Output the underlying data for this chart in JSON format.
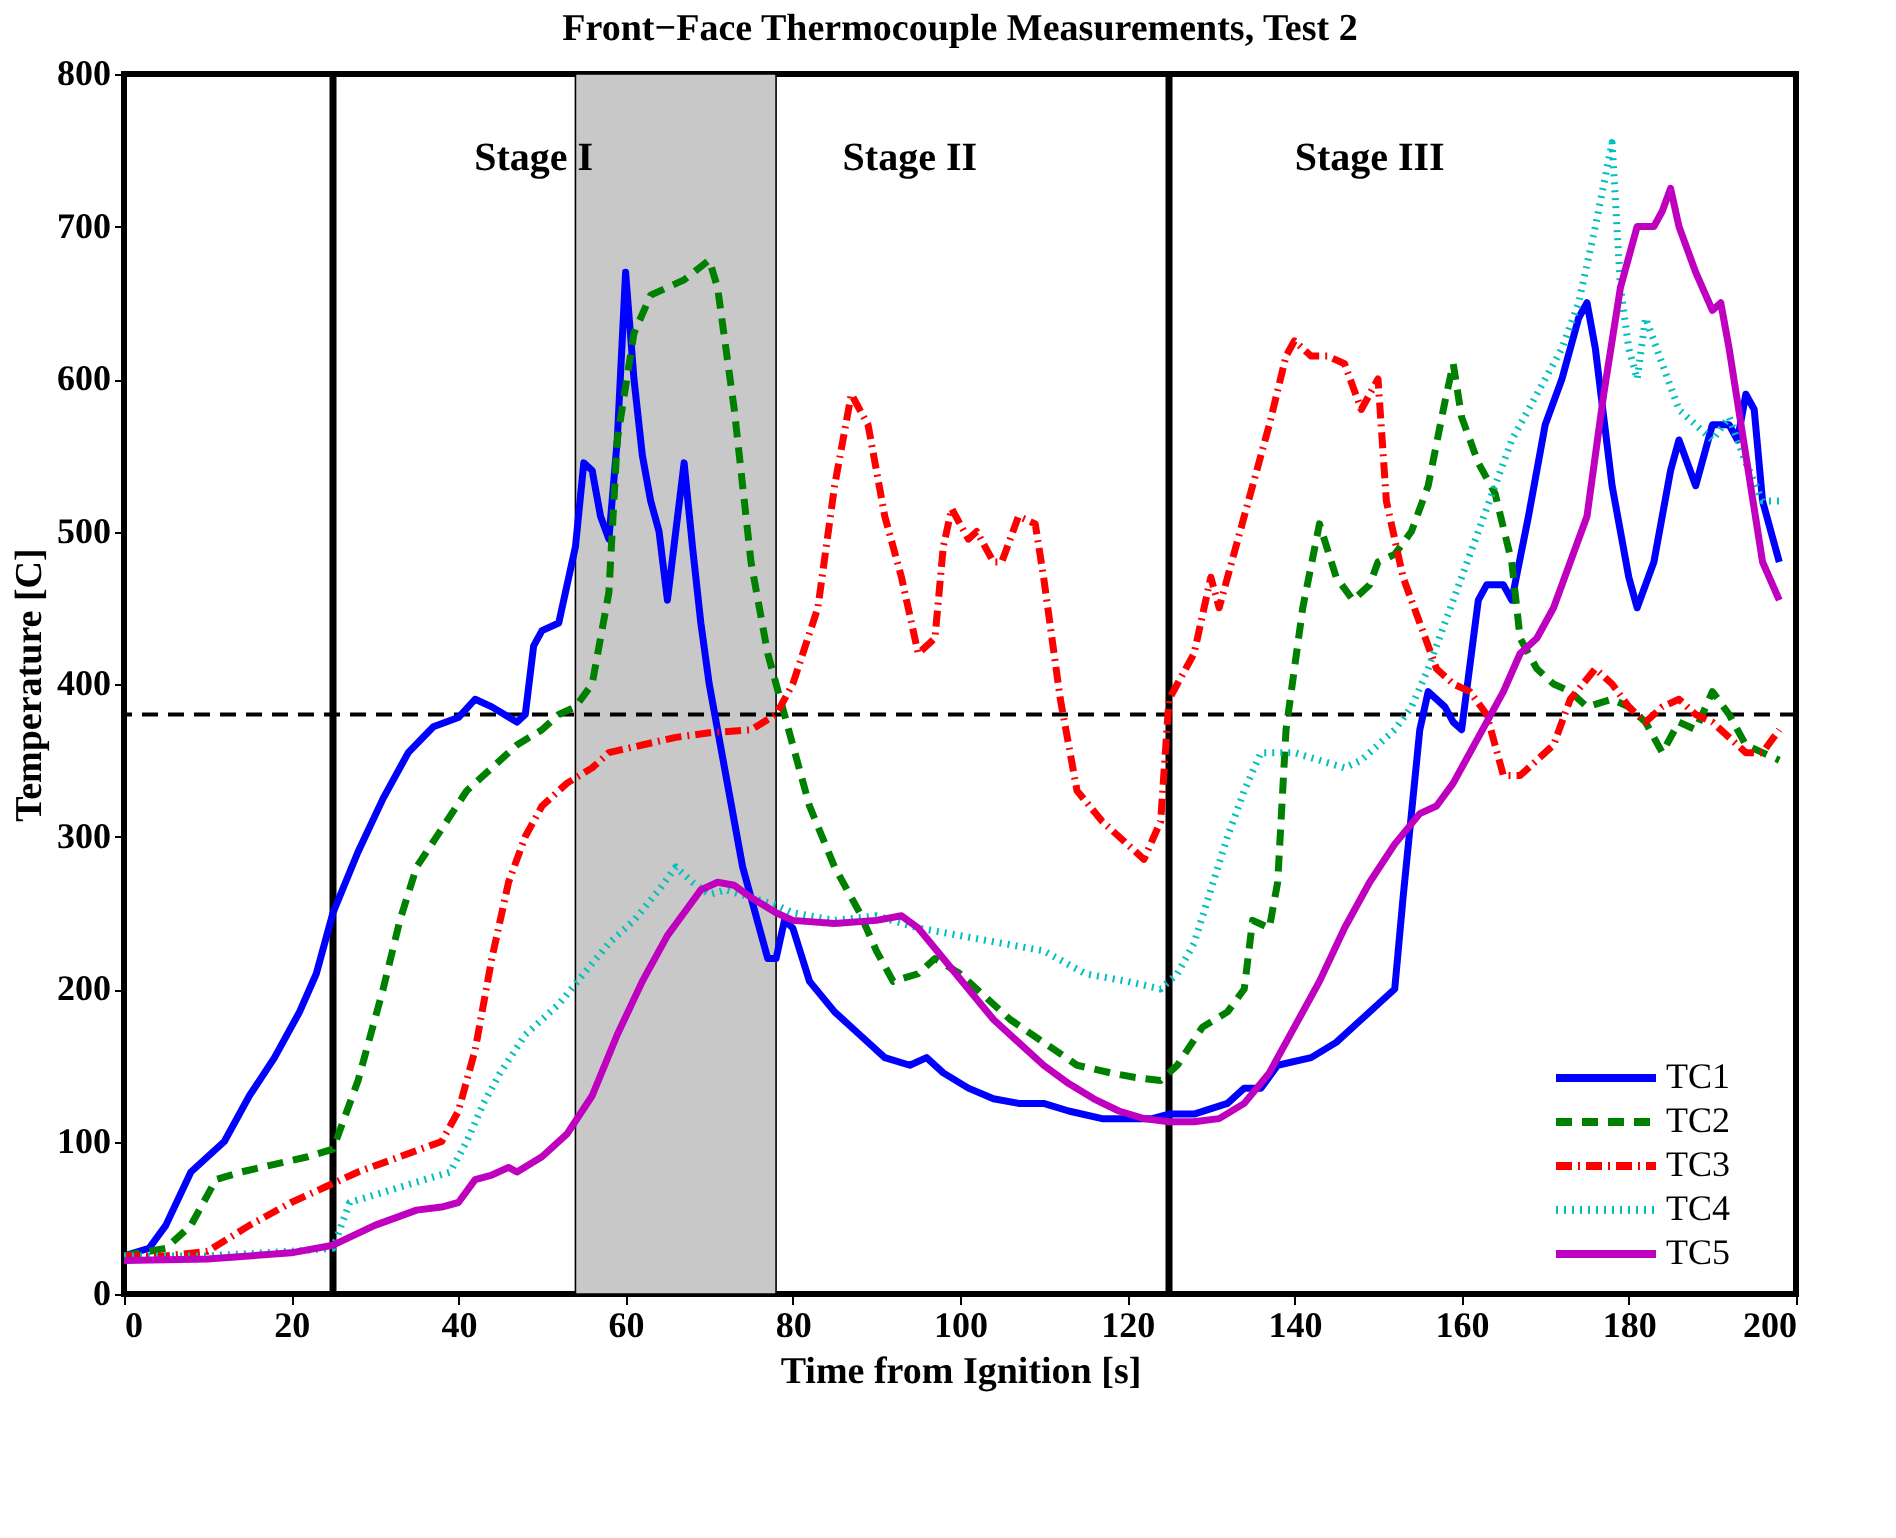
{
  "chart_data": {
    "type": "line",
    "title": "Front−Face Thermocouple Measurements, Test 2",
    "xlabel": "Time from Ignition [s]",
    "ylabel": "Temperature [C]",
    "xlim": [
      0,
      200
    ],
    "xticks": [
      0,
      20,
      40,
      60,
      80,
      100,
      120,
      140,
      160,
      180,
      200
    ],
    "ylim": [
      0,
      800
    ],
    "yticks": [
      0,
      100,
      200,
      300,
      400,
      500,
      600,
      700,
      800
    ],
    "grid": false,
    "legend": "bottom right",
    "marker": "none",
    "series": [
      {
        "name": "TC1",
        "color": "#0000ff",
        "line_style": "solid",
        "x": [
          0,
          3,
          5,
          8,
          10,
          12,
          15,
          18,
          21,
          23,
          25,
          28,
          31,
          34,
          37,
          40,
          42,
          44,
          47,
          48,
          49,
          50,
          52,
          54,
          55,
          56,
          57,
          58,
          59,
          60,
          61,
          62,
          63,
          64,
          65,
          66,
          67,
          68,
          69,
          70,
          72,
          74,
          76,
          77,
          78,
          79,
          80,
          82,
          85,
          88,
          91,
          94,
          96,
          98,
          101,
          104,
          107,
          110,
          113,
          117,
          120,
          123,
          125,
          128,
          132,
          134,
          136,
          138,
          142,
          145,
          148,
          150,
          152,
          153,
          155,
          156,
          158,
          159,
          160,
          162,
          163,
          165,
          166,
          168,
          170,
          172,
          174,
          175,
          176,
          178,
          180,
          181,
          183,
          185,
          186,
          188,
          190,
          192,
          193,
          194,
          195,
          196,
          197,
          198
        ],
        "values": [
          25,
          30,
          45,
          80,
          90,
          100,
          130,
          155,
          185,
          210,
          250,
          290,
          325,
          355,
          372,
          378,
          390,
          385,
          375,
          380,
          425,
          435,
          440,
          490,
          545,
          540,
          510,
          495,
          560,
          670,
          600,
          550,
          520,
          500,
          455,
          500,
          545,
          490,
          440,
          400,
          340,
          280,
          240,
          220,
          220,
          245,
          240,
          205,
          185,
          170,
          155,
          150,
          155,
          145,
          135,
          128,
          125,
          125,
          120,
          115,
          115,
          115,
          118,
          118,
          125,
          135,
          135,
          150,
          155,
          165,
          180,
          190,
          200,
          260,
          370,
          395,
          385,
          375,
          370,
          455,
          465,
          465,
          455,
          510,
          570,
          600,
          640,
          650,
          620,
          530,
          470,
          450,
          480,
          540,
          560,
          530,
          570,
          570,
          560,
          590,
          580,
          520,
          500,
          480
        ]
      },
      {
        "name": "TC2",
        "color": "#008000",
        "line_style": "dashed",
        "x": [
          0,
          5,
          8,
          11,
          14,
          18,
          22,
          25,
          28,
          31,
          33,
          35,
          38,
          41,
          44,
          47,
          50,
          52,
          54,
          56,
          58,
          59,
          61,
          63,
          65,
          67,
          70,
          71,
          73,
          75,
          77,
          78,
          80,
          82,
          85,
          88,
          90,
          92,
          95,
          97,
          100,
          103,
          106,
          110,
          114,
          118,
          121,
          124,
          126,
          129,
          132,
          134,
          135,
          137,
          138,
          139,
          141,
          143,
          145,
          147,
          149,
          150,
          152,
          154,
          156,
          158,
          159,
          160,
          162,
          164,
          166,
          167,
          169,
          171,
          173,
          175,
          178,
          180,
          182,
          184,
          186,
          188,
          190,
          192,
          194,
          196,
          198
        ],
        "values": [
          25,
          30,
          45,
          75,
          80,
          85,
          90,
          95,
          140,
          200,
          245,
          280,
          305,
          330,
          345,
          360,
          370,
          380,
          385,
          400,
          460,
          560,
          630,
          655,
          660,
          665,
          678,
          660,
          580,
          480,
          420,
          400,
          360,
          320,
          280,
          250,
          225,
          205,
          210,
          220,
          210,
          195,
          180,
          165,
          150,
          145,
          142,
          140,
          150,
          175,
          185,
          200,
          245,
          240,
          270,
          370,
          450,
          505,
          470,
          455,
          465,
          480,
          485,
          500,
          530,
          585,
          610,
          575,
          545,
          525,
          480,
          430,
          410,
          400,
          395,
          385,
          390,
          385,
          375,
          355,
          375,
          370,
          395,
          380,
          360,
          355,
          350
        ]
      },
      {
        "name": "TC3",
        "color": "#ff0000",
        "line_style": "dashdot",
        "x": [
          0,
          5,
          10,
          15,
          20,
          24,
          28,
          33,
          38,
          40,
          42,
          44,
          46,
          48,
          50,
          53,
          56,
          58,
          62,
          66,
          70,
          75,
          78,
          80,
          83,
          85,
          87,
          89,
          91,
          93,
          95,
          97,
          98,
          99,
          100,
          101,
          102,
          104,
          105,
          107,
          109,
          110,
          112,
          114,
          117,
          120,
          122,
          124,
          125,
          126,
          128,
          130,
          131,
          133,
          135,
          137,
          139,
          140,
          142,
          144,
          146,
          148,
          150,
          151,
          153,
          155,
          157,
          159,
          161,
          163,
          165,
          167,
          169,
          171,
          173,
          176,
          178,
          180,
          182,
          184,
          186,
          188,
          190,
          192,
          194,
          196,
          198
        ],
        "values": [
          25,
          25,
          28,
          45,
          60,
          70,
          80,
          90,
          100,
          120,
          160,
          220,
          270,
          300,
          320,
          335,
          345,
          355,
          360,
          365,
          368,
          370,
          380,
          400,
          450,
          530,
          590,
          570,
          510,
          470,
          420,
          430,
          490,
          515,
          505,
          495,
          500,
          480,
          480,
          510,
          505,
          470,
          390,
          330,
          310,
          295,
          285,
          310,
          390,
          400,
          420,
          470,
          450,
          490,
          530,
          570,
          615,
          625,
          615,
          615,
          610,
          580,
          600,
          520,
          470,
          440,
          410,
          400,
          395,
          380,
          340,
          340,
          350,
          360,
          390,
          410,
          400,
          385,
          375,
          385,
          390,
          380,
          375,
          365,
          355,
          355,
          370
        ]
      },
      {
        "name": "TC4",
        "color": "#00bfbf",
        "line_style": "dotted",
        "x": [
          0,
          10,
          20,
          25,
          27,
          30,
          33,
          36,
          39,
          41,
          43,
          45,
          48,
          52,
          55,
          58,
          61,
          64,
          66,
          68,
          70,
          72,
          75,
          78,
          80,
          85,
          90,
          95,
          100,
          105,
          110,
          115,
          120,
          124,
          126,
          128,
          130,
          132,
          134,
          136,
          140,
          143,
          146,
          148,
          150,
          152,
          154,
          156,
          158,
          160,
          162,
          164,
          166,
          168,
          170,
          172,
          174,
          176,
          178,
          179,
          180,
          181,
          182,
          184,
          186,
          188,
          190,
          192,
          194,
          196,
          198
        ],
        "values": [
          25,
          25,
          28,
          30,
          60,
          65,
          70,
          75,
          80,
          100,
          125,
          145,
          170,
          190,
          210,
          230,
          245,
          265,
          280,
          270,
          262,
          265,
          260,
          255,
          250,
          245,
          248,
          240,
          235,
          230,
          225,
          210,
          205,
          200,
          210,
          230,
          265,
          300,
          330,
          355,
          355,
          350,
          345,
          350,
          360,
          370,
          385,
          410,
          440,
          470,
          500,
          530,
          560,
          580,
          600,
          620,
          650,
          700,
          755,
          660,
          620,
          600,
          640,
          610,
          580,
          570,
          560,
          575,
          545,
          520,
          520
        ]
      },
      {
        "name": "TC5",
        "color": "#bf00bf",
        "line_style": "solid",
        "x": [
          0,
          10,
          20,
          25,
          30,
          35,
          38,
          40,
          42,
          44,
          46,
          47,
          50,
          53,
          56,
          59,
          62,
          65,
          67,
          69,
          71,
          73,
          75,
          78,
          80,
          85,
          90,
          93,
          95,
          98,
          101,
          104,
          107,
          110,
          113,
          116,
          119,
          122,
          125,
          128,
          131,
          134,
          137,
          140,
          143,
          146,
          149,
          152,
          155,
          157,
          159,
          162,
          165,
          167,
          169,
          171,
          173,
          175,
          177,
          179,
          181,
          183,
          184,
          185,
          186,
          188,
          190,
          191,
          192,
          194,
          196,
          198
        ],
        "values": [
          22,
          23,
          27,
          32,
          45,
          55,
          57,
          60,
          75,
          78,
          83,
          80,
          90,
          105,
          130,
          170,
          205,
          235,
          250,
          265,
          270,
          268,
          260,
          250,
          245,
          243,
          245,
          248,
          240,
          220,
          200,
          180,
          165,
          150,
          138,
          128,
          120,
          115,
          113,
          113,
          115,
          125,
          145,
          175,
          205,
          240,
          270,
          295,
          315,
          320,
          335,
          365,
          395,
          420,
          430,
          450,
          480,
          510,
          590,
          660,
          700,
          700,
          710,
          725,
          700,
          670,
          645,
          650,
          620,
          550,
          480,
          455
        ]
      }
    ],
    "ref_lines": [
      {
        "axis": "x",
        "value": 25,
        "color": "#000000",
        "line_style": "solid"
      },
      {
        "axis": "x",
        "value": 125,
        "color": "#000000",
        "line_style": "solid"
      },
      {
        "axis": "y",
        "value": 380,
        "color": "#000000",
        "line_style": "dashed"
      }
    ],
    "bands": [
      {
        "axis": "x",
        "from": 54,
        "to": 78,
        "color": "#c8c8c8"
      }
    ],
    "annotations": [
      "Stage I",
      "Stage II",
      "Stage III"
    ]
  }
}
